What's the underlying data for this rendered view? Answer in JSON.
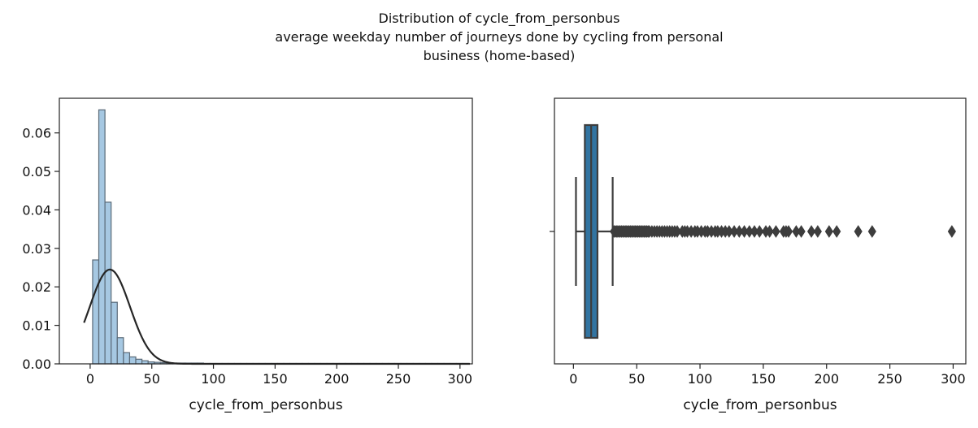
{
  "figure": {
    "title_lines": [
      "Distribution of cycle_from_personbus",
      "average weekday number of journeys done by cycling from personal",
      "business (home-based)"
    ]
  },
  "chart_data": [
    {
      "type": "histogram",
      "xlabel": "cycle_from_personbus",
      "ylabel": "",
      "xlim": [
        -25,
        310
      ],
      "ylim": [
        0,
        0.069
      ],
      "xticks": [
        0,
        50,
        100,
        150,
        200,
        250,
        300
      ],
      "yticks": [
        0.0,
        0.01,
        0.02,
        0.03,
        0.04,
        0.05,
        0.06
      ],
      "ytick_labels": [
        "0.00",
        "0.01",
        "0.02",
        "0.03",
        "0.04",
        "0.05",
        "0.06"
      ],
      "bin_edges": [
        2,
        7,
        12,
        17,
        22,
        27,
        32,
        37,
        42,
        47,
        52,
        57,
        62,
        67,
        72,
        77,
        82,
        87,
        92,
        97,
        102,
        107,
        112,
        117,
        122,
        127,
        132,
        137,
        142,
        147,
        152,
        157,
        162,
        167,
        172,
        177,
        182,
        187,
        192,
        197,
        202,
        207,
        212,
        217,
        222,
        227,
        232,
        237,
        242,
        247,
        252,
        257,
        262,
        267,
        272,
        277,
        282,
        287,
        292,
        297,
        302,
        307
      ],
      "densities": [
        0.027,
        0.066,
        0.042,
        0.016,
        0.0068,
        0.0029,
        0.0018,
        0.0012,
        0.0008,
        0.0005,
        0.0004,
        0.0003,
        0.0003,
        0.0002,
        0.0002,
        0.0002,
        0.0002,
        0.0002,
        0.0001,
        0.0001,
        0.0001,
        0.0001,
        0.0001,
        0.0001,
        0.0001,
        0.0001,
        0.0001,
        0.0001,
        0.0001,
        0.0001,
        0.0001,
        0.0001,
        0.0001,
        0.0001,
        0.0001,
        0.0001,
        0.0001,
        0.0001,
        0.0001,
        0.0001,
        0.0001,
        0.0001,
        0.0001,
        0.0001,
        0.0001,
        0.0001,
        0.0001,
        0.0001,
        0.0001,
        0.0001,
        0.0001,
        0.0001,
        0.0001,
        0.0001,
        0.0001,
        0.0001,
        0.0001,
        0.0001,
        0.0001,
        0.0001,
        0.0001
      ],
      "kde": {
        "x_range": [
          -5,
          308
        ],
        "mean": 16,
        "std": 16.3,
        "peak": 0.0245
      },
      "bar_color": "#a6c8e2",
      "bar_edge_color": "#5a6a78",
      "kde_color": "#262626"
    },
    {
      "type": "boxplot",
      "xlabel": "cycle_from_personbus",
      "xlim": [
        -15,
        310
      ],
      "xticks": [
        0,
        50,
        100,
        150,
        200,
        250,
        300
      ],
      "whisker_low": 2,
      "q1": 9,
      "median": 14,
      "q3": 19,
      "whisker_high": 31,
      "outliers": [
        32,
        33,
        34,
        35,
        36,
        37,
        38,
        39,
        40,
        41,
        42,
        43,
        44,
        45,
        46,
        47,
        48,
        49,
        50,
        51,
        52,
        53,
        54,
        55,
        56,
        57,
        58,
        59,
        60,
        62,
        64,
        66,
        68,
        70,
        72,
        74,
        76,
        78,
        80,
        82,
        86,
        88,
        90,
        93,
        96,
        98,
        101,
        104,
        106,
        109,
        112,
        114,
        117,
        120,
        123,
        127,
        131,
        135,
        139,
        143,
        147,
        152,
        155,
        160,
        166,
        168,
        170,
        176,
        180,
        188,
        193,
        202,
        208,
        225,
        236,
        299
      ],
      "box_color": "#3274a1",
      "line_color": "#3d3d3d"
    }
  ]
}
